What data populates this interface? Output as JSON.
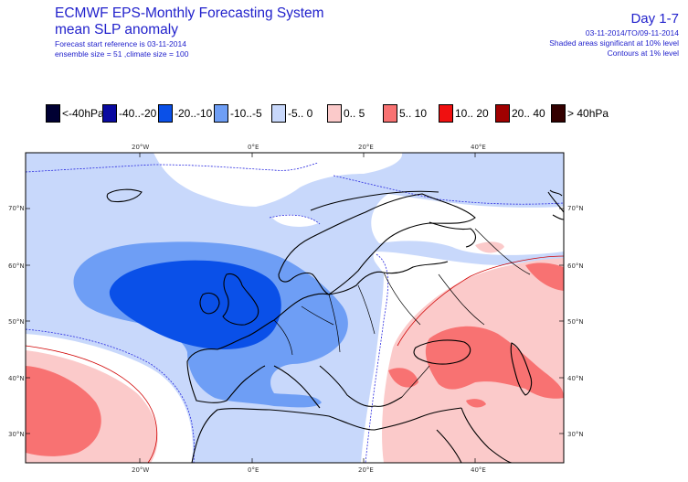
{
  "header": {
    "title": "ECMWF EPS-Monthly Forecasting System",
    "subtitle": "mean SLP anomaly",
    "start_ref": "Forecast start reference is 03-11-2014",
    "ensemble": "ensemble size = 51  ,climate size = 100",
    "day": "Day 1-7",
    "period": "03-11-2014/TO/09-11-2014",
    "sig10": "Shaded areas significant at 10% level",
    "sig1": "Contours at 1% level"
  },
  "legend": [
    {
      "label": "<-40hPa",
      "color": "#000033"
    },
    {
      "label": "-40..-20",
      "color": "#0a0aa0"
    },
    {
      "label": "-20..-10",
      "color": "#0a50e8"
    },
    {
      "label": "-10..-5",
      "color": "#6e9ef5"
    },
    {
      "label": "-5..  0",
      "color": "#c8d8fb"
    },
    {
      "label": "0..  5",
      "color": "#fbcaca"
    },
    {
      "label": "5..  10",
      "color": "#f87272"
    },
    {
      "label": "10..  20",
      "color": "#f01010"
    },
    {
      "label": "20..  40",
      "color": "#a00000"
    },
    {
      "label": ">  40hPa",
      "color": "#330000"
    }
  ],
  "axes": {
    "lon_top": [
      "20°W",
      "0°E",
      "20°E",
      "40°E"
    ],
    "lon_bottom": [
      "20°W",
      "0°E",
      "20°E",
      "40°E"
    ],
    "lat_left": [
      "70°N",
      "60°N",
      "50°N",
      "40°N",
      "30°N"
    ],
    "lat_right": [
      "70°N",
      "60°N",
      "50°N",
      "40°N",
      "30°N"
    ]
  }
}
